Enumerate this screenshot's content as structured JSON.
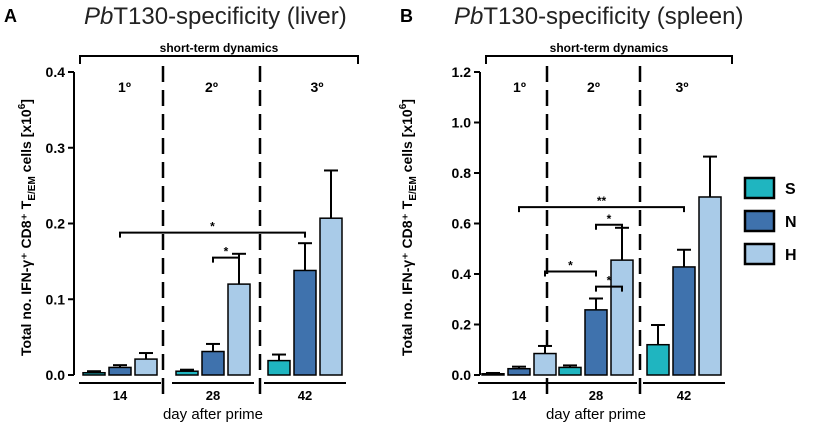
{
  "legend": [
    {
      "key": "S",
      "label": "S",
      "color": "#1fb5c0"
    },
    {
      "key": "N",
      "label": "N",
      "color": "#3f72ad"
    },
    {
      "key": "H",
      "label": "H",
      "color": "#a9cbe8"
    }
  ],
  "chart_data": [
    {
      "type": "bar",
      "panel_letter": "A",
      "title_italic": "Pb",
      "title_rest": "T130-specificity (liver)",
      "xlabel": "day after prime",
      "ylabel": "Total no. IFN-γ⁺ CD8⁺ T",
      "ylabel_sub": "E/EM",
      "ylabel_tail": " cells [x10",
      "ylabel_sup": "6",
      "ylabel_close": "]",
      "ylim": [
        0,
        0.4
      ],
      "yticks": [
        0.0,
        0.1,
        0.2,
        0.3,
        0.4
      ],
      "ytick_labels": [
        "0.0",
        "0.1",
        "0.2",
        "0.3",
        "0.4"
      ],
      "categories": [
        "14",
        "28",
        "42"
      ],
      "series": [
        {
          "name": "S",
          "values": [
            0.003,
            0.005,
            0.019
          ],
          "errors": [
            0.002,
            0.002,
            0.008
          ]
        },
        {
          "name": "N",
          "values": [
            0.01,
            0.031,
            0.138
          ],
          "errors": [
            0.003,
            0.01,
            0.036
          ]
        },
        {
          "name": "H",
          "values": [
            0.021,
            0.12,
            0.207
          ],
          "errors": [
            0.008,
            0.04,
            0.063
          ]
        }
      ],
      "phase_labels": [
        "1º",
        "2º",
        "3º"
      ],
      "top_bracket_label": "short-term dynamics",
      "significance": [
        {
          "label": "*",
          "from": [
            1,
            2
          ],
          "to": [
            1,
            1
          ],
          "y": 0.155
        },
        {
          "label": "*",
          "from": [
            0,
            1
          ],
          "to": [
            2,
            1
          ],
          "y": 0.188
        }
      ]
    },
    {
      "type": "bar",
      "panel_letter": "B",
      "title_italic": "Pb",
      "title_rest": "T130-specificity (spleen)",
      "xlabel": "day after prime",
      "ylabel": "Total no. IFN-γ⁺ CD8⁺ T",
      "ylabel_sub": "E/EM",
      "ylabel_tail": " cells [x10",
      "ylabel_sup": "6",
      "ylabel_close": "]",
      "ylim": [
        0,
        1.2
      ],
      "yticks": [
        0.0,
        0.2,
        0.4,
        0.6,
        0.8,
        1.0,
        1.2
      ],
      "ytick_labels": [
        "0.0",
        "0.2",
        "0.4",
        "0.6",
        "0.8",
        "1.0",
        "1.2"
      ],
      "categories": [
        "14",
        "28",
        "42"
      ],
      "series": [
        {
          "name": "S",
          "values": [
            0.005,
            0.03,
            0.12
          ],
          "errors": [
            0.003,
            0.008,
            0.078
          ]
        },
        {
          "name": "N",
          "values": [
            0.025,
            0.258,
            0.428
          ],
          "errors": [
            0.008,
            0.045,
            0.068
          ]
        },
        {
          "name": "H",
          "values": [
            0.085,
            0.455,
            0.705
          ],
          "errors": [
            0.03,
            0.128,
            0.16
          ]
        }
      ],
      "phase_labels": [
        "1º",
        "2º",
        "3º"
      ],
      "top_bracket_label": "short-term dynamics",
      "significance": [
        {
          "label": "*",
          "from": [
            1,
            1
          ],
          "to": [
            1,
            2
          ],
          "y": 0.35
        },
        {
          "label": "*",
          "from": [
            0,
            2
          ],
          "to": [
            1,
            1
          ],
          "y": 0.41
        },
        {
          "label": "*",
          "from": [
            1,
            1
          ],
          "to": [
            1,
            2
          ],
          "y": 0.595
        },
        {
          "label": "**",
          "from": [
            0,
            1
          ],
          "to": [
            2,
            1
          ],
          "y": 0.665
        }
      ]
    }
  ]
}
